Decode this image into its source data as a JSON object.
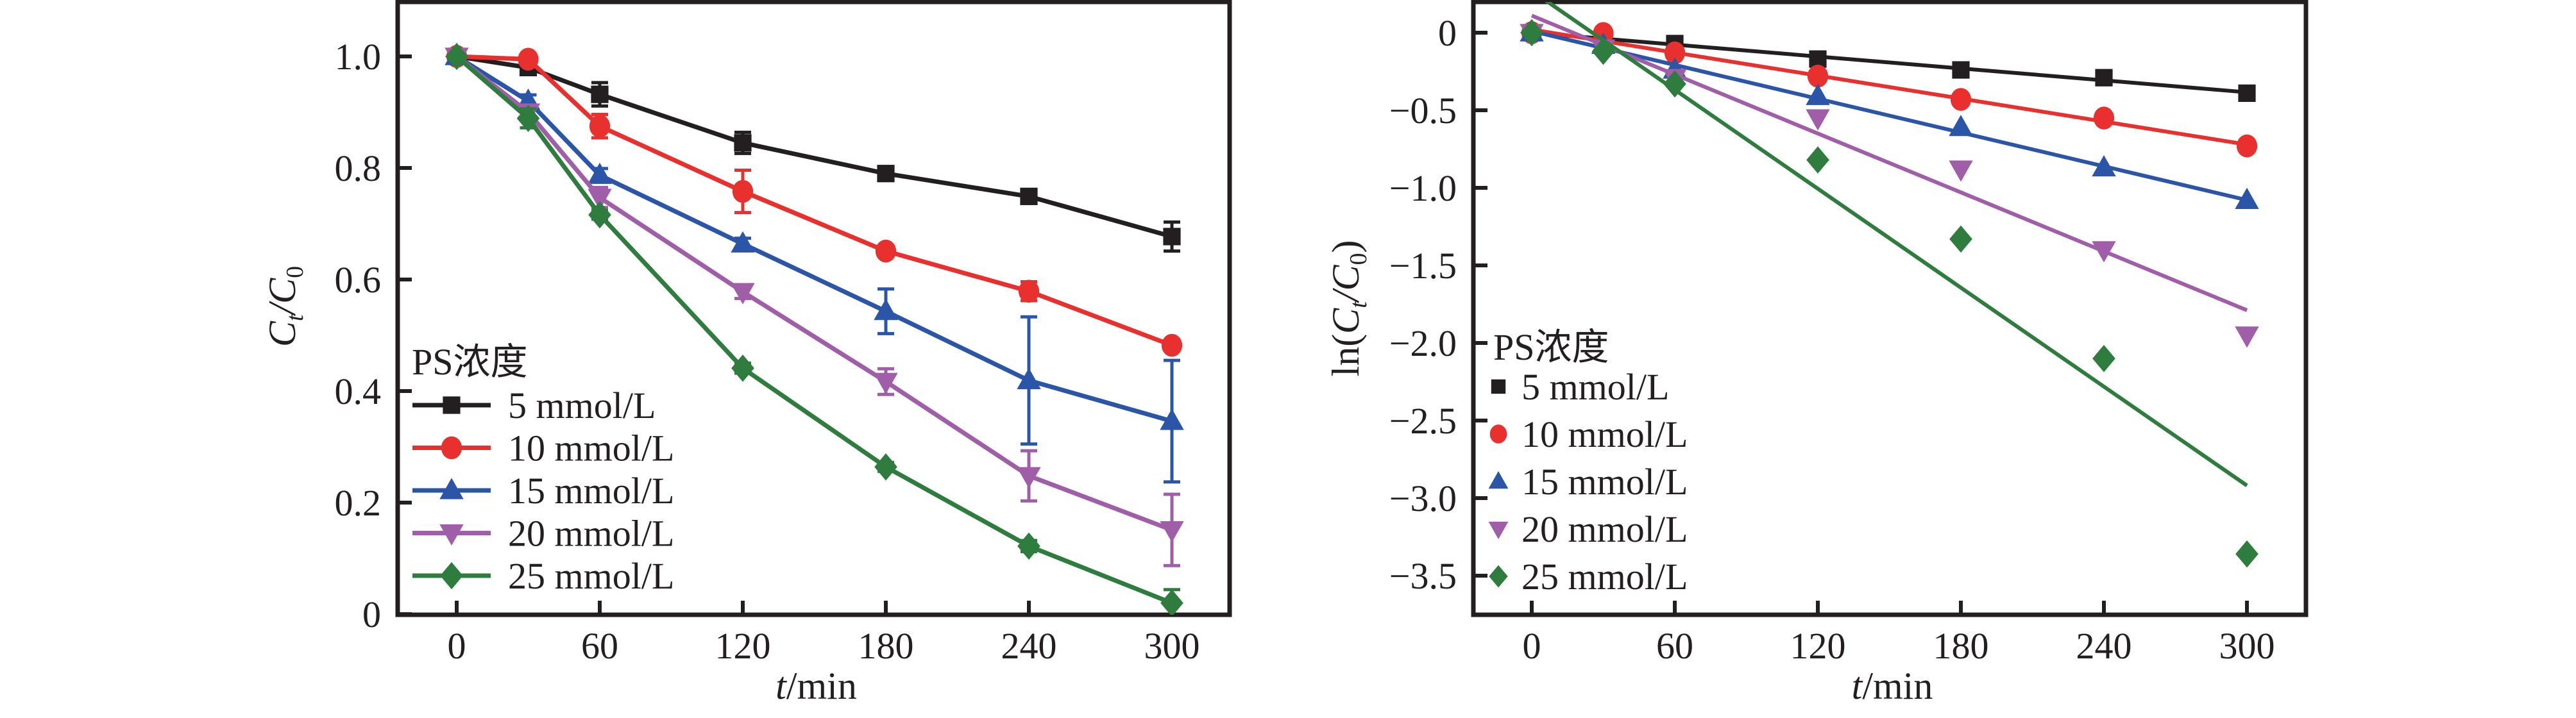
{
  "figure": {
    "panels": [
      "concentration-ratio",
      "log-concentration-ratio"
    ]
  },
  "chart_data": [
    {
      "type": "line",
      "title": "",
      "xlabel": "t/min",
      "xlabel_italic": "t",
      "xlabel_rest": "/min",
      "ylabel": "Ct/C0",
      "ylabel_main": "C",
      "ylabel_sub1": "t",
      "ylabel_slash": "/C",
      "ylabel_sub2": "0",
      "xlim": [
        -22,
        325
      ],
      "ylim": [
        0,
        1.1
      ],
      "xticks": [
        0,
        60,
        120,
        180,
        240,
        300
      ],
      "xtick_labels": [
        "0",
        "60",
        "120",
        "180",
        "240",
        "300"
      ],
      "yticks": [
        0,
        0.2,
        0.4,
        0.6,
        0.8,
        1.0
      ],
      "ytick_labels": [
        "0",
        "0.2",
        "0.4",
        "0.6",
        "0.8",
        "1.0"
      ],
      "grid": false,
      "legend": {
        "title": "PS浓度",
        "position": "lower-left"
      },
      "x": [
        0,
        30,
        60,
        120,
        180,
        240,
        300
      ],
      "series": [
        {
          "name": "5 mmol/L",
          "color": "#231f20",
          "marker": "square",
          "values": [
            1.0,
            0.98,
            0.932,
            0.845,
            0.79,
            0.749,
            0.677
          ],
          "errors": [
            0.0,
            0.005,
            0.021,
            0.019,
            0.006,
            0.006,
            0.026
          ]
        },
        {
          "name": "10 mmol/L",
          "color": "#e8312f",
          "marker": "circle",
          "values": [
            1.0,
            0.995,
            0.875,
            0.758,
            0.651,
            0.579,
            0.482
          ],
          "errors": [
            0.0,
            0.004,
            0.021,
            0.038,
            0.006,
            0.017,
            0.006
          ]
        },
        {
          "name": "15 mmol/L",
          "color": "#2b55a6",
          "marker": "triangle-up",
          "values": [
            1.0,
            0.92,
            0.787,
            0.664,
            0.543,
            0.419,
            0.346
          ],
          "errors": [
            0.0,
            0.011,
            0.012,
            0.01,
            0.04,
            0.114,
            0.109
          ]
        },
        {
          "name": "20 mmol/L",
          "color": "#a05ea8",
          "marker": "triangle-down",
          "values": [
            1.0,
            0.9,
            0.747,
            0.578,
            0.417,
            0.248,
            0.151
          ],
          "errors": [
            0.0,
            0.01,
            0.018,
            0.012,
            0.023,
            0.045,
            0.064
          ]
        },
        {
          "name": "25 mmol/L",
          "color": "#2e7d3e",
          "marker": "diamond",
          "values": [
            1.0,
            0.889,
            0.716,
            0.441,
            0.264,
            0.122,
            0.02
          ],
          "errors": [
            0.0,
            0.017,
            0.008,
            0.009,
            0.008,
            0.01,
            0.024
          ]
        }
      ]
    },
    {
      "type": "scatter",
      "title": "",
      "xlabel": "t/min",
      "xlabel_italic": "t",
      "xlabel_rest": "/min",
      "ylabel": "ln(Ct/C0)",
      "ylabel_prefix": "ln(",
      "ylabel_main": "C",
      "ylabel_sub1": "t",
      "ylabel_slash": "/C",
      "ylabel_sub2": "0",
      "ylabel_suffix": ")",
      "xlim": [
        -22,
        325
      ],
      "ylim": [
        -3.75,
        0.21
      ],
      "xticks": [
        0,
        60,
        120,
        180,
        240,
        300
      ],
      "xtick_labels": [
        "0",
        "60",
        "120",
        "180",
        "240",
        "300"
      ],
      "yticks": [
        0,
        -0.5,
        -1.0,
        -1.5,
        -2.0,
        -2.5,
        -3.0,
        -3.5
      ],
      "ytick_labels": [
        "0",
        "−0.5",
        "−1.0",
        "−1.5",
        "−2.0",
        "−2.5",
        "−3.0",
        "−3.5"
      ],
      "grid": false,
      "legend": {
        "title": "PS浓度",
        "position": "lower-left"
      },
      "x": [
        0,
        30,
        60,
        120,
        180,
        240,
        300
      ],
      "series": [
        {
          "name": "5 mmol/L",
          "color": "#231f20",
          "marker": "square",
          "values": [
            0.0,
            -0.03,
            -0.07,
            -0.17,
            -0.24,
            -0.29,
            -0.39
          ],
          "fit": {
            "slope": -0.00128,
            "intercept": 0.0
          }
        },
        {
          "name": "10 mmol/L",
          "color": "#e8312f",
          "marker": "circle",
          "values": [
            0.0,
            -0.005,
            -0.13,
            -0.28,
            -0.43,
            -0.55,
            -0.73
          ],
          "fit": {
            "slope": -0.00247,
            "intercept": 0.02
          }
        },
        {
          "name": "15 mmol/L",
          "color": "#2b55a6",
          "marker": "triangle-up",
          "values": [
            0.0,
            -0.08,
            -0.24,
            -0.41,
            -0.61,
            -0.87,
            -1.08
          ],
          "fit": {
            "slope": -0.00363,
            "intercept": 0.01
          }
        },
        {
          "name": "20 mmol/L",
          "color": "#a05ea8",
          "marker": "triangle-down",
          "values": [
            0.0,
            -0.1,
            -0.29,
            -0.55,
            -0.88,
            -1.4,
            -1.95
          ],
          "fit": {
            "slope": -0.00633,
            "intercept": 0.11
          }
        },
        {
          "name": "25 mmol/L",
          "color": "#2e7d3e",
          "marker": "diamond",
          "values": [
            0.0,
            -0.12,
            -0.33,
            -0.82,
            -1.33,
            -2.1,
            -3.36
          ],
          "fit": {
            "slope": -0.01063,
            "intercept": 0.27
          }
        }
      ]
    }
  ]
}
